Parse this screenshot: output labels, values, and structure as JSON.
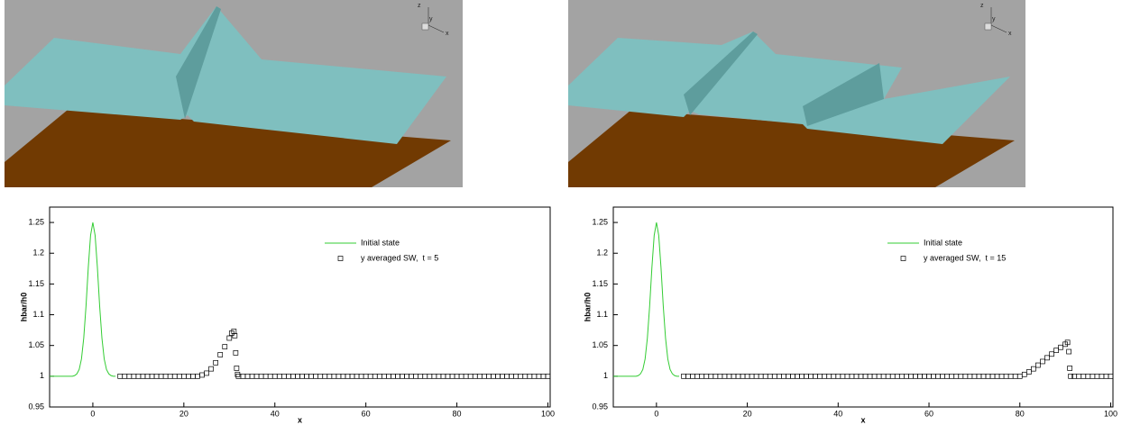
{
  "renders": [
    {
      "axes": [
        "z",
        "y",
        "x"
      ]
    },
    {
      "axes": [
        "z",
        "y",
        "x"
      ]
    }
  ],
  "chart_data": [
    {
      "type": "line",
      "xlabel": "x",
      "ylabel": "hbar/h0",
      "xlim": [
        -9.5,
        100.5
      ],
      "ylim": [
        0.95,
        1.275
      ],
      "xticks": [
        0,
        20,
        40,
        60,
        80,
        100
      ],
      "yticks": [
        0.95,
        1,
        1.05,
        1.1,
        1.15,
        1.2,
        1.25
      ],
      "legend": "upper right",
      "series": [
        {
          "name": "Initial state",
          "color": "#33cc33",
          "type": "line",
          "x": [
            -9.5,
            -9,
            -8.5,
            -8,
            -7.5,
            -7,
            -6.5,
            -6,
            -5.5,
            -5,
            -4.5,
            -4,
            -3.5,
            -3,
            -2.5,
            -2,
            -1.5,
            -1,
            -0.5,
            0,
            0.5,
            1,
            1.5,
            2,
            2.5,
            3,
            3.5,
            4,
            4.5,
            5
          ],
          "values": [
            1,
            1,
            1,
            1,
            1,
            1,
            1,
            1,
            1,
            1,
            1,
            1.001,
            1.004,
            1.011,
            1.028,
            1.062,
            1.114,
            1.177,
            1.229,
            1.25,
            1.229,
            1.177,
            1.114,
            1.062,
            1.028,
            1.011,
            1.004,
            1.001,
            1,
            1
          ]
        },
        {
          "name": "y averaged SW,  t = 5",
          "color": "#000000",
          "type": "scatter",
          "marker": "square",
          "x": [
            6,
            7,
            8,
            9,
            10,
            11,
            12,
            13,
            14,
            15,
            16,
            17,
            18,
            19,
            20,
            21,
            22,
            23,
            24,
            25,
            26,
            27,
            28,
            29,
            30,
            30.5,
            31,
            31.2,
            31.4,
            31.6,
            31.8,
            32,
            33,
            34,
            35,
            36,
            37,
            38,
            39,
            40,
            41,
            42,
            43,
            44,
            45,
            46,
            47,
            48,
            49,
            50,
            51,
            52,
            53,
            54,
            55,
            56,
            57,
            58,
            59,
            60,
            61,
            62,
            63,
            64,
            65,
            66,
            67,
            68,
            69,
            70,
            71,
            72,
            73,
            74,
            75,
            76,
            77,
            78,
            79,
            80,
            81,
            82,
            83,
            84,
            85,
            86,
            87,
            88,
            89,
            90,
            91,
            92,
            93,
            94,
            95,
            96,
            97,
            98,
            99,
            100
          ],
          "values": [
            1,
            1,
            1,
            1,
            1,
            1,
            1,
            1,
            1,
            1,
            1,
            1,
            1,
            1,
            1,
            1,
            1,
            1,
            1.002,
            1.005,
            1.012,
            1.022,
            1.035,
            1.048,
            1.062,
            1.07,
            1.073,
            1.066,
            1.038,
            1.013,
            1.003,
            1,
            1,
            1,
            1,
            1,
            1,
            1,
            1,
            1,
            1,
            1,
            1,
            1,
            1,
            1,
            1,
            1,
            1,
            1,
            1,
            1,
            1,
            1,
            1,
            1,
            1,
            1,
            1,
            1,
            1,
            1,
            1,
            1,
            1,
            1,
            1,
            1,
            1,
            1,
            1,
            1,
            1,
            1,
            1,
            1,
            1,
            1,
            1,
            1,
            1,
            1,
            1,
            1,
            1,
            1,
            1,
            1,
            1,
            1,
            1,
            1,
            1,
            1,
            1,
            1,
            1,
            1,
            1,
            1
          ]
        }
      ]
    },
    {
      "type": "line",
      "xlabel": "x",
      "ylabel": "hbar/h0",
      "xlim": [
        -9.5,
        100.5
      ],
      "ylim": [
        0.95,
        1.275
      ],
      "xticks": [
        0,
        20,
        40,
        60,
        80,
        100
      ],
      "yticks": [
        0.95,
        1,
        1.05,
        1.1,
        1.15,
        1.2,
        1.25
      ],
      "legend": "upper right",
      "series": [
        {
          "name": "Initial state",
          "color": "#33cc33",
          "type": "line",
          "x": [
            -9.5,
            -9,
            -8.5,
            -8,
            -7.5,
            -7,
            -6.5,
            -6,
            -5.5,
            -5,
            -4.5,
            -4,
            -3.5,
            -3,
            -2.5,
            -2,
            -1.5,
            -1,
            -0.5,
            0,
            0.5,
            1,
            1.5,
            2,
            2.5,
            3,
            3.5,
            4,
            4.5,
            5
          ],
          "values": [
            1,
            1,
            1,
            1,
            1,
            1,
            1,
            1,
            1,
            1,
            1,
            1.001,
            1.004,
            1.011,
            1.028,
            1.062,
            1.114,
            1.177,
            1.229,
            1.25,
            1.229,
            1.177,
            1.114,
            1.062,
            1.028,
            1.011,
            1.004,
            1.001,
            1,
            1
          ]
        },
        {
          "name": "y averaged SW,  t = 15",
          "color": "#000000",
          "type": "scatter",
          "marker": "square",
          "x": [
            6,
            7,
            8,
            9,
            10,
            11,
            12,
            13,
            14,
            15,
            16,
            17,
            18,
            19,
            20,
            21,
            22,
            23,
            24,
            25,
            26,
            27,
            28,
            29,
            30,
            31,
            32,
            33,
            34,
            35,
            36,
            37,
            38,
            39,
            40,
            41,
            42,
            43,
            44,
            45,
            46,
            47,
            48,
            49,
            50,
            51,
            52,
            53,
            54,
            55,
            56,
            57,
            58,
            59,
            60,
            61,
            62,
            63,
            64,
            65,
            66,
            67,
            68,
            69,
            70,
            71,
            72,
            73,
            74,
            75,
            76,
            77,
            78,
            79,
            80,
            81,
            82,
            83,
            84,
            85,
            86,
            87,
            88,
            89,
            90,
            90.5,
            90.8,
            91,
            91.2,
            92,
            93,
            94,
            95,
            96,
            97,
            98,
            99,
            100
          ],
          "values": [
            1,
            1,
            1,
            1,
            1,
            1,
            1,
            1,
            1,
            1,
            1,
            1,
            1,
            1,
            1,
            1,
            1,
            1,
            1,
            1,
            1,
            1,
            1,
            1,
            1,
            1,
            1,
            1,
            1,
            1,
            1,
            1,
            1,
            1,
            1,
            1,
            1,
            1,
            1,
            1,
            1,
            1,
            1,
            1,
            1,
            1,
            1,
            1,
            1,
            1,
            1,
            1,
            1,
            1,
            1,
            1,
            1,
            1,
            1,
            1,
            1,
            1,
            1,
            1,
            1,
            1,
            1,
            1,
            1,
            1,
            1,
            1,
            1,
            1,
            1,
            1.003,
            1.007,
            1.012,
            1.018,
            1.024,
            1.03,
            1.036,
            1.042,
            1.047,
            1.052,
            1.055,
            1.04,
            1.013,
            1,
            1,
            1,
            1,
            1,
            1,
            1,
            1,
            1,
            1
          ]
        }
      ]
    }
  ]
}
